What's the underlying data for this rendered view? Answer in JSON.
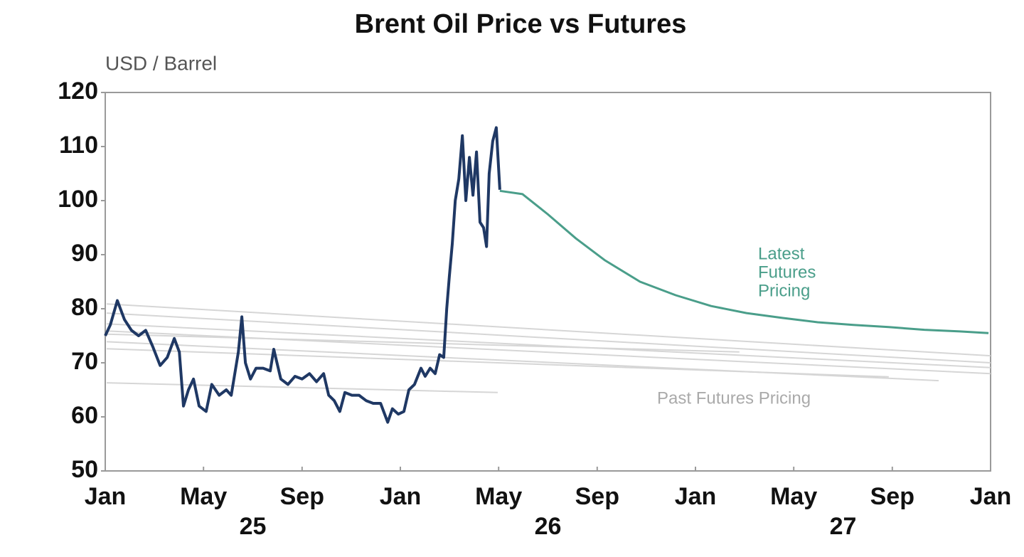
{
  "chart_data": {
    "type": "line",
    "title": "Brent Oil Price vs Futures",
    "y_label": "USD / Barrel",
    "ylim": [
      50,
      120
    ],
    "yticks": [
      50,
      60,
      70,
      80,
      90,
      100,
      110,
      120
    ],
    "xlim": [
      2025,
      2028
    ],
    "xticks": [
      {
        "value": 2025,
        "label": "Jan"
      },
      {
        "value": 2025.333,
        "label": "May"
      },
      {
        "value": 2025.667,
        "label": "Sep"
      },
      {
        "value": 2026,
        "label": "Jan"
      },
      {
        "value": 2026.333,
        "label": "May"
      },
      {
        "value": 2026.667,
        "label": "Sep"
      },
      {
        "value": 2027,
        "label": "Jan"
      },
      {
        "value": 2027.333,
        "label": "May"
      },
      {
        "value": 2027.667,
        "label": "Sep"
      },
      {
        "value": 2028,
        "label": "Jan"
      }
    ],
    "year_labels": [
      {
        "value": 2025.5,
        "label": "25"
      },
      {
        "value": 2026.5,
        "label": "26"
      },
      {
        "value": 2027.5,
        "label": "27"
      }
    ],
    "annotations": [
      [
        "Latest",
        "Futures",
        "Pricing"
      ],
      [
        "Past Futures Pricing"
      ]
    ],
    "series": [
      {
        "color": "#d6d6d6",
        "x": [
          2025.005,
          2028
        ],
        "values": [
          80.9,
          71.3
        ]
      },
      {
        "color": "#d6d6d6",
        "x": [
          2025.005,
          2028
        ],
        "values": [
          79.2,
          70
        ]
      },
      {
        "color": "#d6d6d6",
        "x": [
          2025.005,
          2028
        ],
        "values": [
          77.2,
          69.1
        ]
      },
      {
        "color": "#d6d6d6",
        "x": [
          2025.005,
          2028
        ],
        "values": [
          75.9,
          68
        ]
      },
      {
        "color": "#d6d6d6",
        "x": [
          2025.005,
          2027.824
        ],
        "values": [
          73.9,
          66.7
        ]
      },
      {
        "color": "#d6d6d6",
        "x": [
          2025.005,
          2027.655
        ],
        "values": [
          72.6,
          67.4
        ]
      },
      {
        "color": "#d6d6d6",
        "x": [
          2025.005,
          2027.149
        ],
        "values": [
          75.3,
          72
        ]
      },
      {
        "color": "#d6d6d6",
        "x": [
          2025.005,
          2026.33
        ],
        "values": [
          66.3,
          64.5
        ]
      },
      {
        "color": "#1f3864",
        "x": [
          2025.0,
          2025.017,
          2025.041,
          2025.065,
          2025.089,
          2025.113,
          2025.137,
          2025.161,
          2025.186,
          2025.21,
          2025.234,
          2025.251,
          2025.265,
          2025.282,
          2025.299,
          2025.318,
          2025.342,
          2025.361,
          2025.386,
          2025.41,
          2025.427,
          2025.451,
          2025.463,
          2025.475,
          2025.492,
          2025.511,
          2025.535,
          2025.559,
          2025.571,
          2025.595,
          2025.619,
          2025.643,
          2025.667,
          2025.692,
          2025.716,
          2025.74,
          2025.757,
          2025.776,
          2025.795,
          2025.812,
          2025.836,
          2025.86,
          2025.884,
          2025.908,
          2025.933,
          2025.957,
          2025.973,
          2025.993,
          2026.012,
          2026.029,
          2026.048,
          2026.07,
          2026.084,
          2026.101,
          2026.118,
          2026.133,
          2026.147,
          2026.157,
          2026.166,
          2026.176,
          2026.186,
          2026.198,
          2026.21,
          2026.222,
          2026.234,
          2026.246,
          2026.258,
          2026.27,
          2026.282,
          2026.292,
          2026.301,
          2026.313,
          2026.325,
          2026.337
        ],
        "values": [
          75,
          77,
          81.5,
          78,
          76,
          75,
          76,
          73,
          69.5,
          71,
          74.5,
          72,
          62,
          65,
          67,
          62,
          61,
          66,
          64,
          65,
          64,
          72,
          78.5,
          70,
          67,
          69,
          69,
          68.5,
          72.5,
          67,
          66,
          67.5,
          67,
          68,
          66.5,
          68,
          64,
          63,
          61,
          64.5,
          64,
          64,
          63,
          62.5,
          62.5,
          59,
          61.5,
          60.5,
          61,
          65,
          66,
          69,
          67.5,
          69,
          68,
          71.5,
          71,
          80,
          86,
          92,
          100,
          104,
          112,
          100,
          108,
          101,
          109,
          96,
          95,
          91.5,
          105,
          111,
          113.5,
          102
        ]
      },
      {
        "color": "#4a9e8a",
        "x": [
          2026.337,
          2026.414,
          2026.499,
          2026.595,
          2026.692,
          2026.812,
          2026.933,
          2027.053,
          2027.173,
          2027.294,
          2027.414,
          2027.535,
          2027.655,
          2027.776,
          2027.896,
          2027.993
        ],
        "values": [
          101.8,
          101.2,
          97.5,
          93,
          89,
          85,
          82.5,
          80.5,
          79.2,
          78.3,
          77.5,
          77,
          76.6,
          76.1,
          75.8,
          75.5
        ]
      }
    ]
  }
}
